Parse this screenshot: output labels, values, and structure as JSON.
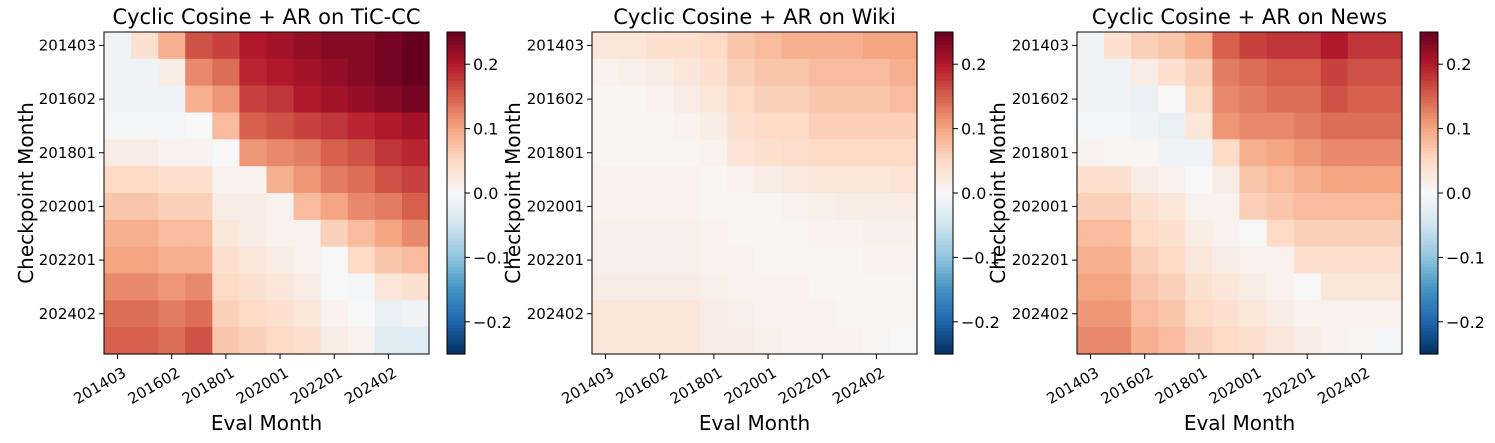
{
  "chart_data": [
    {
      "type": "heatmap",
      "title": "Cyclic Cosine + AR on TiC-CC",
      "xlabel": "Eval Month",
      "ylabel": "Checkpoint Month",
      "x_tick_labels": [
        "201403",
        "201602",
        "201801",
        "202001",
        "202201",
        "202402"
      ],
      "y_tick_labels": [
        "201403",
        "201602",
        "201801",
        "202001",
        "202201",
        "202402"
      ],
      "colorbar": {
        "vmin": -0.25,
        "vmax": 0.25,
        "ticks": [
          0.2,
          0.1,
          0.0,
          -0.1,
          -0.2
        ],
        "tick_labels": [
          "0.2",
          "0.1",
          "0.0",
          "−0.1",
          "−0.2"
        ],
        "colormap": "RdBu_r"
      },
      "values": [
        [
          -0.01,
          0.04,
          0.09,
          0.16,
          0.17,
          0.2,
          0.21,
          0.22,
          0.23,
          0.23,
          0.24,
          0.25
        ],
        [
          -0.01,
          -0.01,
          0.02,
          0.12,
          0.14,
          0.19,
          0.2,
          0.21,
          0.22,
          0.23,
          0.24,
          0.25
        ],
        [
          -0.01,
          -0.01,
          -0.01,
          0.09,
          0.11,
          0.17,
          0.18,
          0.2,
          0.21,
          0.22,
          0.23,
          0.24
        ],
        [
          -0.005,
          -0.005,
          -0.005,
          0.0,
          0.08,
          0.15,
          0.16,
          0.17,
          0.18,
          0.19,
          0.2,
          0.21
        ],
        [
          0.02,
          0.02,
          0.01,
          0.01,
          0.0,
          0.11,
          0.12,
          0.13,
          0.15,
          0.16,
          0.18,
          0.19
        ],
        [
          0.05,
          0.05,
          0.04,
          0.04,
          0.01,
          0.01,
          0.09,
          0.11,
          0.13,
          0.14,
          0.16,
          0.17
        ],
        [
          0.07,
          0.07,
          0.06,
          0.06,
          0.02,
          0.02,
          0.01,
          0.08,
          0.1,
          0.12,
          0.13,
          0.15
        ],
        [
          0.09,
          0.09,
          0.08,
          0.08,
          0.03,
          0.02,
          0.01,
          0.01,
          0.06,
          0.08,
          0.1,
          0.12
        ],
        [
          0.1,
          0.1,
          0.09,
          0.09,
          0.04,
          0.03,
          0.02,
          0.01,
          0.0,
          0.05,
          0.07,
          0.08
        ],
        [
          0.12,
          0.12,
          0.11,
          0.12,
          0.05,
          0.04,
          0.03,
          0.02,
          0.0,
          -0.005,
          0.03,
          0.04
        ],
        [
          0.14,
          0.14,
          0.13,
          0.14,
          0.06,
          0.05,
          0.04,
          0.03,
          0.01,
          0.0,
          -0.02,
          -0.01
        ],
        [
          0.15,
          0.15,
          0.14,
          0.16,
          0.07,
          0.06,
          0.05,
          0.04,
          0.02,
          0.01,
          -0.03,
          -0.03
        ]
      ]
    },
    {
      "type": "heatmap",
      "title": "Cyclic Cosine + AR on Wiki",
      "xlabel": "Eval Month",
      "ylabel": "Checkpoint Month",
      "x_tick_labels": [
        "201403",
        "201602",
        "201801",
        "202001",
        "202201",
        "202402"
      ],
      "y_tick_labels": [
        "201403",
        "201602",
        "201801",
        "202001",
        "202201",
        "202402"
      ],
      "colorbar": {
        "vmin": -0.25,
        "vmax": 0.25,
        "ticks": [
          0.2,
          0.1,
          0.0,
          -0.1,
          -0.2
        ],
        "tick_labels": [
          "0.2",
          "0.1",
          "0.0",
          "−0.1",
          "−0.2"
        ],
        "colormap": "RdBu_r"
      },
      "values": [
        [
          0.03,
          0.03,
          0.04,
          0.04,
          0.05,
          0.07,
          0.08,
          0.09,
          0.09,
          0.09,
          0.1,
          0.1
        ],
        [
          0.01,
          0.015,
          0.02,
          0.03,
          0.04,
          0.06,
          0.07,
          0.07,
          0.08,
          0.08,
          0.08,
          0.09
        ],
        [
          0.005,
          0.005,
          0.01,
          0.02,
          0.03,
          0.05,
          0.06,
          0.06,
          0.07,
          0.07,
          0.07,
          0.08
        ],
        [
          0.005,
          0.005,
          0.005,
          0.01,
          0.02,
          0.04,
          0.05,
          0.05,
          0.06,
          0.06,
          0.06,
          0.06
        ],
        [
          0.005,
          0.005,
          0.005,
          0.005,
          0.01,
          0.035,
          0.04,
          0.045,
          0.05,
          0.05,
          0.05,
          0.05
        ],
        [
          0.01,
          0.01,
          0.01,
          0.01,
          0.005,
          0.01,
          0.02,
          0.025,
          0.03,
          0.03,
          0.03,
          0.035
        ],
        [
          0.01,
          0.01,
          0.01,
          0.01,
          0.005,
          0.005,
          0.005,
          0.01,
          0.015,
          0.02,
          0.02,
          0.02
        ],
        [
          0.015,
          0.015,
          0.015,
          0.015,
          0.01,
          0.005,
          0.005,
          0.005,
          0.01,
          0.01,
          0.015,
          0.015
        ],
        [
          0.015,
          0.015,
          0.015,
          0.015,
          0.01,
          0.01,
          0.005,
          0.005,
          0.005,
          0.005,
          0.01,
          0.01
        ],
        [
          0.02,
          0.02,
          0.02,
          0.02,
          0.015,
          0.01,
          0.01,
          0.01,
          0.005,
          0.005,
          0.005,
          0.005
        ],
        [
          0.03,
          0.03,
          0.03,
          0.03,
          0.02,
          0.015,
          0.01,
          0.01,
          0.01,
          0.005,
          0.005,
          0.005
        ],
        [
          0.03,
          0.03,
          0.03,
          0.03,
          0.02,
          0.02,
          0.015,
          0.01,
          0.01,
          0.01,
          0.005,
          0.0
        ]
      ]
    },
    {
      "type": "heatmap",
      "title": "Cyclic Cosine + AR on News",
      "xlabel": "Eval Month",
      "ylabel": "Checkpoint Month",
      "x_tick_labels": [
        "201403",
        "201602",
        "201801",
        "202001",
        "202201",
        "202402"
      ],
      "y_tick_labels": [
        "201403",
        "201602",
        "201801",
        "202001",
        "202201",
        "202402"
      ],
      "colorbar": {
        "vmin": -0.25,
        "vmax": 0.25,
        "ticks": [
          0.2,
          0.1,
          0.0,
          -0.1,
          -0.2
        ],
        "tick_labels": [
          "0.2",
          "0.1",
          "0.0",
          "−0.1",
          "−0.2"
        ],
        "colormap": "RdBu_r"
      },
      "values": [
        [
          -0.01,
          0.04,
          0.06,
          0.07,
          0.09,
          0.15,
          0.17,
          0.18,
          0.18,
          0.2,
          0.18,
          0.18
        ],
        [
          -0.01,
          -0.01,
          0.02,
          0.04,
          0.06,
          0.13,
          0.14,
          0.15,
          0.15,
          0.17,
          0.16,
          0.16
        ],
        [
          -0.01,
          -0.01,
          -0.02,
          0.0,
          0.05,
          0.12,
          0.13,
          0.14,
          0.14,
          0.16,
          0.15,
          0.15
        ],
        [
          -0.005,
          -0.005,
          -0.01,
          -0.02,
          0.03,
          0.11,
          0.12,
          0.12,
          0.13,
          0.14,
          0.14,
          0.14
        ],
        [
          0.01,
          0.005,
          0.005,
          -0.01,
          -0.01,
          0.05,
          0.09,
          0.1,
          0.11,
          0.12,
          0.12,
          0.12
        ],
        [
          0.04,
          0.04,
          0.02,
          0.01,
          0.0,
          0.02,
          0.07,
          0.08,
          0.09,
          0.1,
          0.1,
          0.1
        ],
        [
          0.06,
          0.06,
          0.04,
          0.03,
          0.01,
          0.01,
          0.06,
          0.07,
          0.08,
          0.08,
          0.08,
          0.08
        ],
        [
          0.08,
          0.08,
          0.05,
          0.04,
          0.02,
          0.01,
          0.0,
          0.05,
          0.06,
          0.06,
          0.06,
          0.06
        ],
        [
          0.09,
          0.09,
          0.06,
          0.05,
          0.03,
          0.02,
          0.01,
          0.01,
          0.04,
          0.04,
          0.04,
          0.04
        ],
        [
          0.1,
          0.1,
          0.07,
          0.06,
          0.04,
          0.03,
          0.02,
          0.01,
          0.0,
          0.03,
          0.03,
          0.03
        ],
        [
          0.11,
          0.11,
          0.08,
          0.07,
          0.05,
          0.04,
          0.03,
          0.02,
          0.01,
          0.01,
          0.01,
          0.01
        ],
        [
          0.12,
          0.12,
          0.09,
          0.08,
          0.06,
          0.05,
          0.04,
          0.03,
          0.02,
          0.01,
          0.005,
          -0.005
        ]
      ]
    }
  ]
}
